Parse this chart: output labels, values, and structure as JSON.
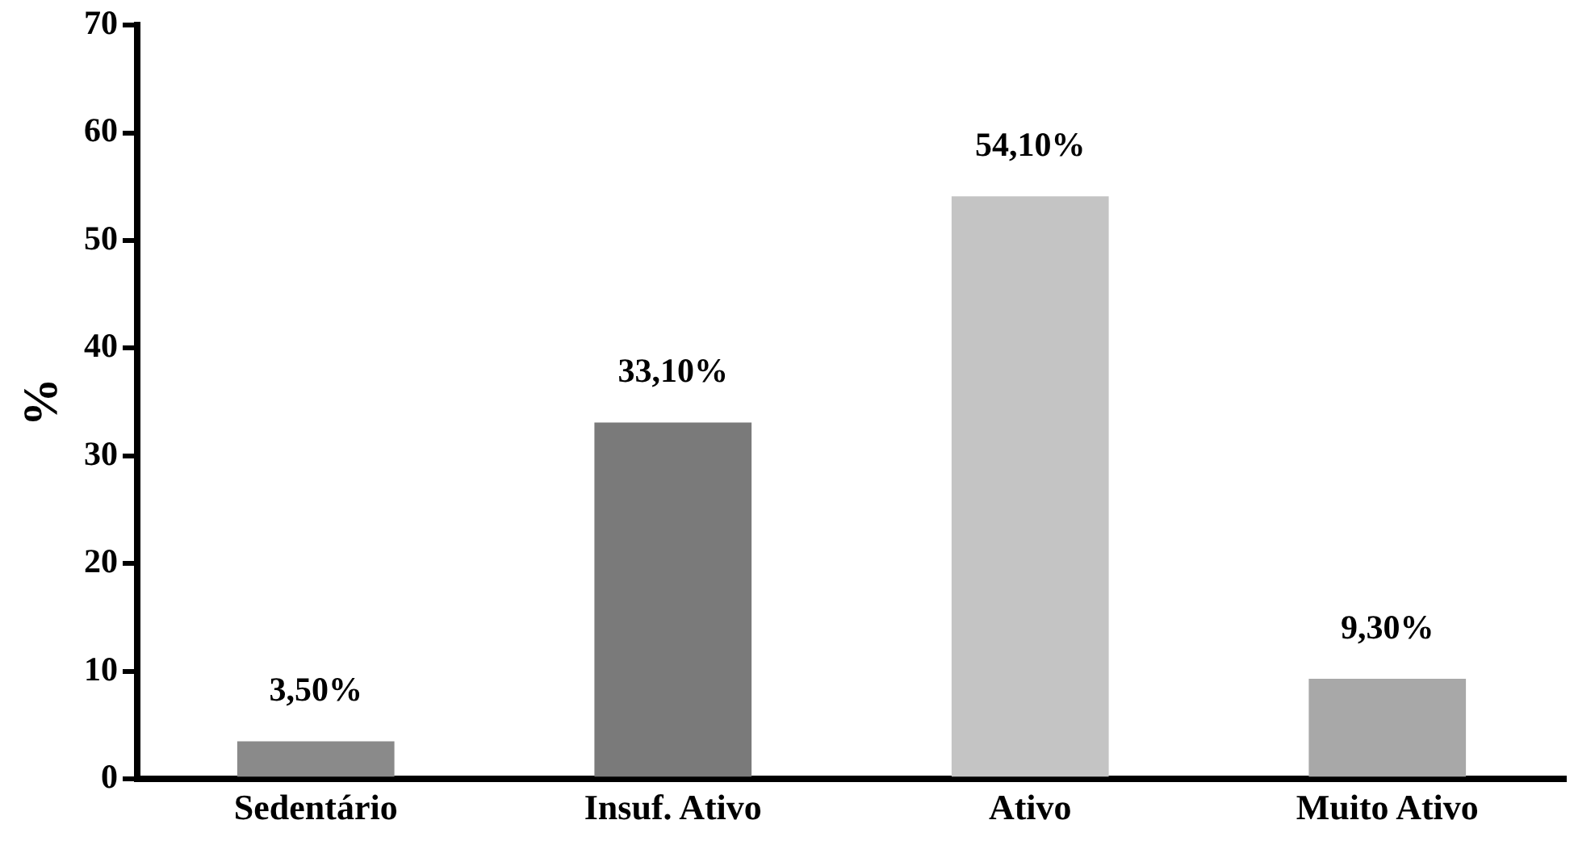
{
  "chart_data": {
    "type": "bar",
    "ylabel": "%",
    "categories": [
      "Sedentário",
      "Insuf. Ativo",
      "Ativo",
      "Muito Ativo"
    ],
    "values": [
      3.5,
      33.1,
      54.1,
      9.3
    ],
    "value_labels": [
      "3,50%",
      "33,10%",
      "54,10%",
      "9,30%"
    ],
    "colors": [
      "#8a8a8a",
      "#7a7a7a",
      "#c4c4c4",
      "#a8a8a8"
    ],
    "ylim": [
      0,
      70
    ],
    "yticks": [
      0,
      10,
      20,
      30,
      40,
      50,
      60,
      70
    ],
    "grid": false,
    "legend": false
  }
}
